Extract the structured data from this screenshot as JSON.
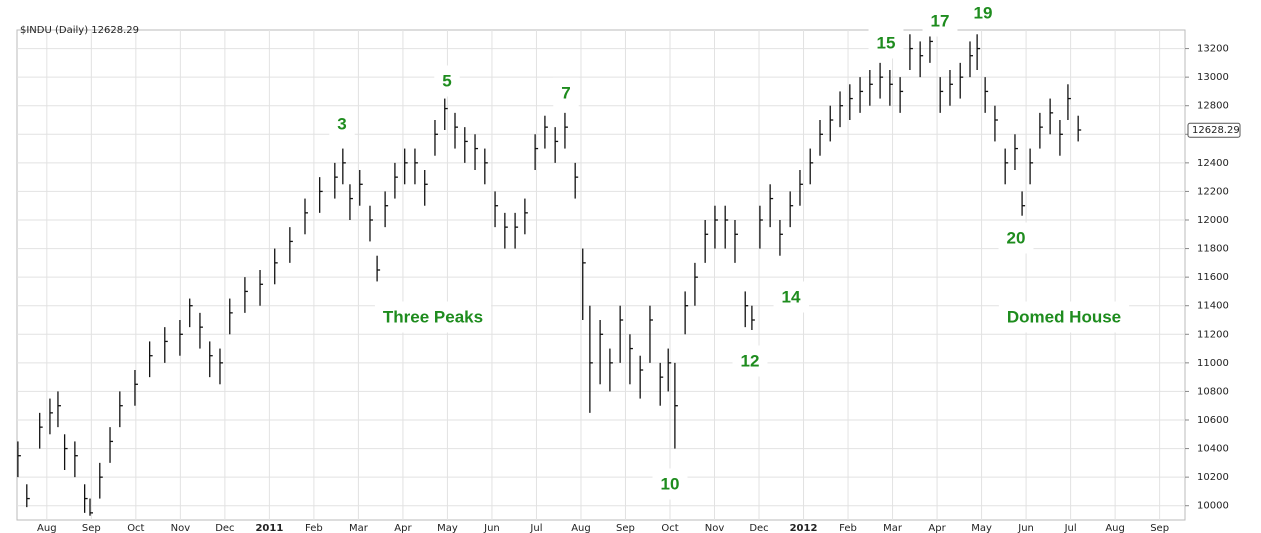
{
  "chart_data": {
    "type": "hlc",
    "title": "$INDU (Daily) 12628.29",
    "last_value": 12628.29,
    "x": [
      0.35,
      0.55,
      0.84,
      1.07,
      1.25,
      1.4,
      1.63,
      1.85,
      1.97,
      2.19,
      2.42,
      2.64,
      2.98,
      3.31,
      3.65,
      3.99,
      4.21,
      4.44,
      4.66,
      4.89,
      5.11,
      5.45,
      5.79,
      6.12,
      6.46,
      6.8,
      7.13,
      7.47,
      7.65,
      7.81,
      8.03,
      8.26,
      8.42,
      8.6,
      8.82,
      9.04,
      9.27,
      9.49,
      9.72,
      9.94,
      10.17,
      10.39,
      10.62,
      10.84,
      11.07,
      11.29,
      11.52,
      11.74,
      11.97,
      12.19,
      12.42,
      12.64,
      12.87,
      13.04,
      13.2,
      13.43,
      13.65,
      13.88,
      14.1,
      14.33,
      14.55,
      14.78,
      14.96,
      15.11,
      15.34,
      15.56,
      15.79,
      16.01,
      16.24,
      16.46,
      16.69,
      16.84,
      17.02,
      17.25,
      17.47,
      17.7,
      17.92,
      18.15,
      18.37,
      18.6,
      18.82,
      19.04,
      19.27,
      19.49,
      19.72,
      19.94,
      20.17,
      20.39,
      20.62,
      20.84,
      21.07,
      21.29,
      21.52,
      21.74,
      21.9,
      22.08,
      22.3,
      22.53,
      22.75,
      22.91,
      23.09,
      23.31,
      23.54,
      23.76,
      23.94,
      24.17
    ],
    "high": [
      10450,
      10150,
      10650,
      10750,
      10800,
      10500,
      10450,
      10150,
      10050,
      10300,
      10550,
      10800,
      10950,
      11150,
      11250,
      11300,
      11450,
      11350,
      11150,
      11100,
      11450,
      11600,
      11650,
      11800,
      11950,
      12150,
      12300,
      12400,
      12500,
      12250,
      12350,
      12100,
      11750,
      12200,
      12400,
      12500,
      12500,
      12350,
      12700,
      12850,
      12750,
      12650,
      12600,
      12500,
      12200,
      12050,
      12050,
      12150,
      12600,
      12730,
      12650,
      12750,
      12400,
      11800,
      11400,
      11300,
      11100,
      11400,
      11200,
      11050,
      11400,
      11000,
      11100,
      11000,
      11500,
      11700,
      12000,
      12100,
      12100,
      12000,
      11500,
      11400,
      12100,
      12250,
      12000,
      12200,
      12350,
      12500,
      12700,
      12800,
      12900,
      12950,
      13000,
      13050,
      13100,
      13050,
      13000,
      13300,
      13250,
      13290,
      13000,
      13050,
      13100,
      13250,
      13300,
      13000,
      12800,
      12500,
      12600,
      12200,
      12500,
      12750,
      12850,
      12700,
      12950,
      12730
    ],
    "low": [
      10200,
      9990,
      10400,
      10500,
      10550,
      10250,
      10200,
      9950,
      9930,
      10050,
      10300,
      10550,
      10700,
      10900,
      11000,
      11050,
      11250,
      11100,
      10900,
      10850,
      11200,
      11350,
      11400,
      11550,
      11700,
      11900,
      12050,
      12150,
      12250,
      12000,
      12100,
      11850,
      11570,
      11950,
      12150,
      12250,
      12250,
      12100,
      12450,
      12630,
      12500,
      12400,
      12350,
      12250,
      11950,
      11800,
      11800,
      11900,
      12350,
      12500,
      12400,
      12500,
      12150,
      11300,
      10650,
      10850,
      10800,
      11000,
      10850,
      10750,
      11000,
      10700,
      10800,
      10400,
      11200,
      11400,
      11700,
      11800,
      11800,
      11700,
      11250,
      11230,
      11800,
      11950,
      11750,
      11950,
      12100,
      12250,
      12450,
      12550,
      12650,
      12700,
      12750,
      12800,
      12850,
      12800,
      12750,
      13050,
      13000,
      13100,
      12750,
      12800,
      12850,
      13000,
      13050,
      12750,
      12550,
      12250,
      12350,
      12030,
      12250,
      12500,
      12600,
      12450,
      12700,
      12550
    ],
    "close": [
      10350,
      10050,
      10550,
      10650,
      10700,
      10400,
      10350,
      10050,
      9950,
      10200,
      10450,
      10700,
      10850,
      11050,
      11150,
      11200,
      11400,
      11250,
      11050,
      11000,
      11350,
      11500,
      11550,
      11700,
      11850,
      12050,
      12200,
      12300,
      12400,
      12150,
      12250,
      12000,
      11650,
      12100,
      12300,
      12400,
      12400,
      12250,
      12600,
      12780,
      12650,
      12550,
      12500,
      12400,
      12100,
      11950,
      11950,
      12050,
      12500,
      12650,
      12550,
      12650,
      12300,
      11700,
      11000,
      11200,
      11000,
      11300,
      11100,
      10950,
      11300,
      10900,
      11000,
      10700,
      11400,
      11600,
      11900,
      12000,
      12000,
      11900,
      11400,
      11300,
      12000,
      12150,
      11900,
      12100,
      12250,
      12400,
      12600,
      12700,
      12800,
      12850,
      12900,
      12950,
      13000,
      12950,
      12900,
      13200,
      13150,
      13250,
      12900,
      12950,
      13000,
      13150,
      13200,
      12900,
      12700,
      12400,
      12500,
      12100,
      12400,
      12650,
      12750,
      12600,
      12850,
      12630
    ],
    "color": "#111111",
    "xlim": [
      0.33,
      26.57
    ],
    "ylim": [
      9900,
      13330
    ],
    "xticks": [
      {
        "value": 1,
        "label": "Aug"
      },
      {
        "value": 2,
        "label": "Sep"
      },
      {
        "value": 3,
        "label": "Oct"
      },
      {
        "value": 4,
        "label": "Nov"
      },
      {
        "value": 5,
        "label": "Dec"
      },
      {
        "value": 6,
        "label": "2011"
      },
      {
        "value": 7,
        "label": "Feb"
      },
      {
        "value": 8,
        "label": "Mar"
      },
      {
        "value": 9,
        "label": "Apr"
      },
      {
        "value": 10,
        "label": "May"
      },
      {
        "value": 11,
        "label": "Jun"
      },
      {
        "value": 12,
        "label": "Jul"
      },
      {
        "value": 13,
        "label": "Aug"
      },
      {
        "value": 14,
        "label": "Sep"
      },
      {
        "value": 15,
        "label": "Oct"
      },
      {
        "value": 16,
        "label": "Nov"
      },
      {
        "value": 17,
        "label": "Dec"
      },
      {
        "value": 18,
        "label": "2012"
      },
      {
        "value": 19,
        "label": "Feb"
      },
      {
        "value": 20,
        "label": "Mar"
      },
      {
        "value": 21,
        "label": "Apr"
      },
      {
        "value": 22,
        "label": "May"
      },
      {
        "value": 23,
        "label": "Jun"
      },
      {
        "value": 24,
        "label": "Jul"
      },
      {
        "value": 25,
        "label": "Aug"
      },
      {
        "value": 26,
        "label": "Sep"
      }
    ],
    "yticks": [
      10000,
      10200,
      10400,
      10600,
      10800,
      11000,
      11200,
      11400,
      11600,
      11800,
      12000,
      12200,
      12400,
      12600,
      12800,
      13000,
      13200
    ],
    "grid": true,
    "annotations": [
      "3",
      "5",
      "7",
      "Three Peaks",
      "10",
      "12",
      "14",
      "15",
      "17",
      "19",
      "20",
      "Domed House"
    ]
  }
}
